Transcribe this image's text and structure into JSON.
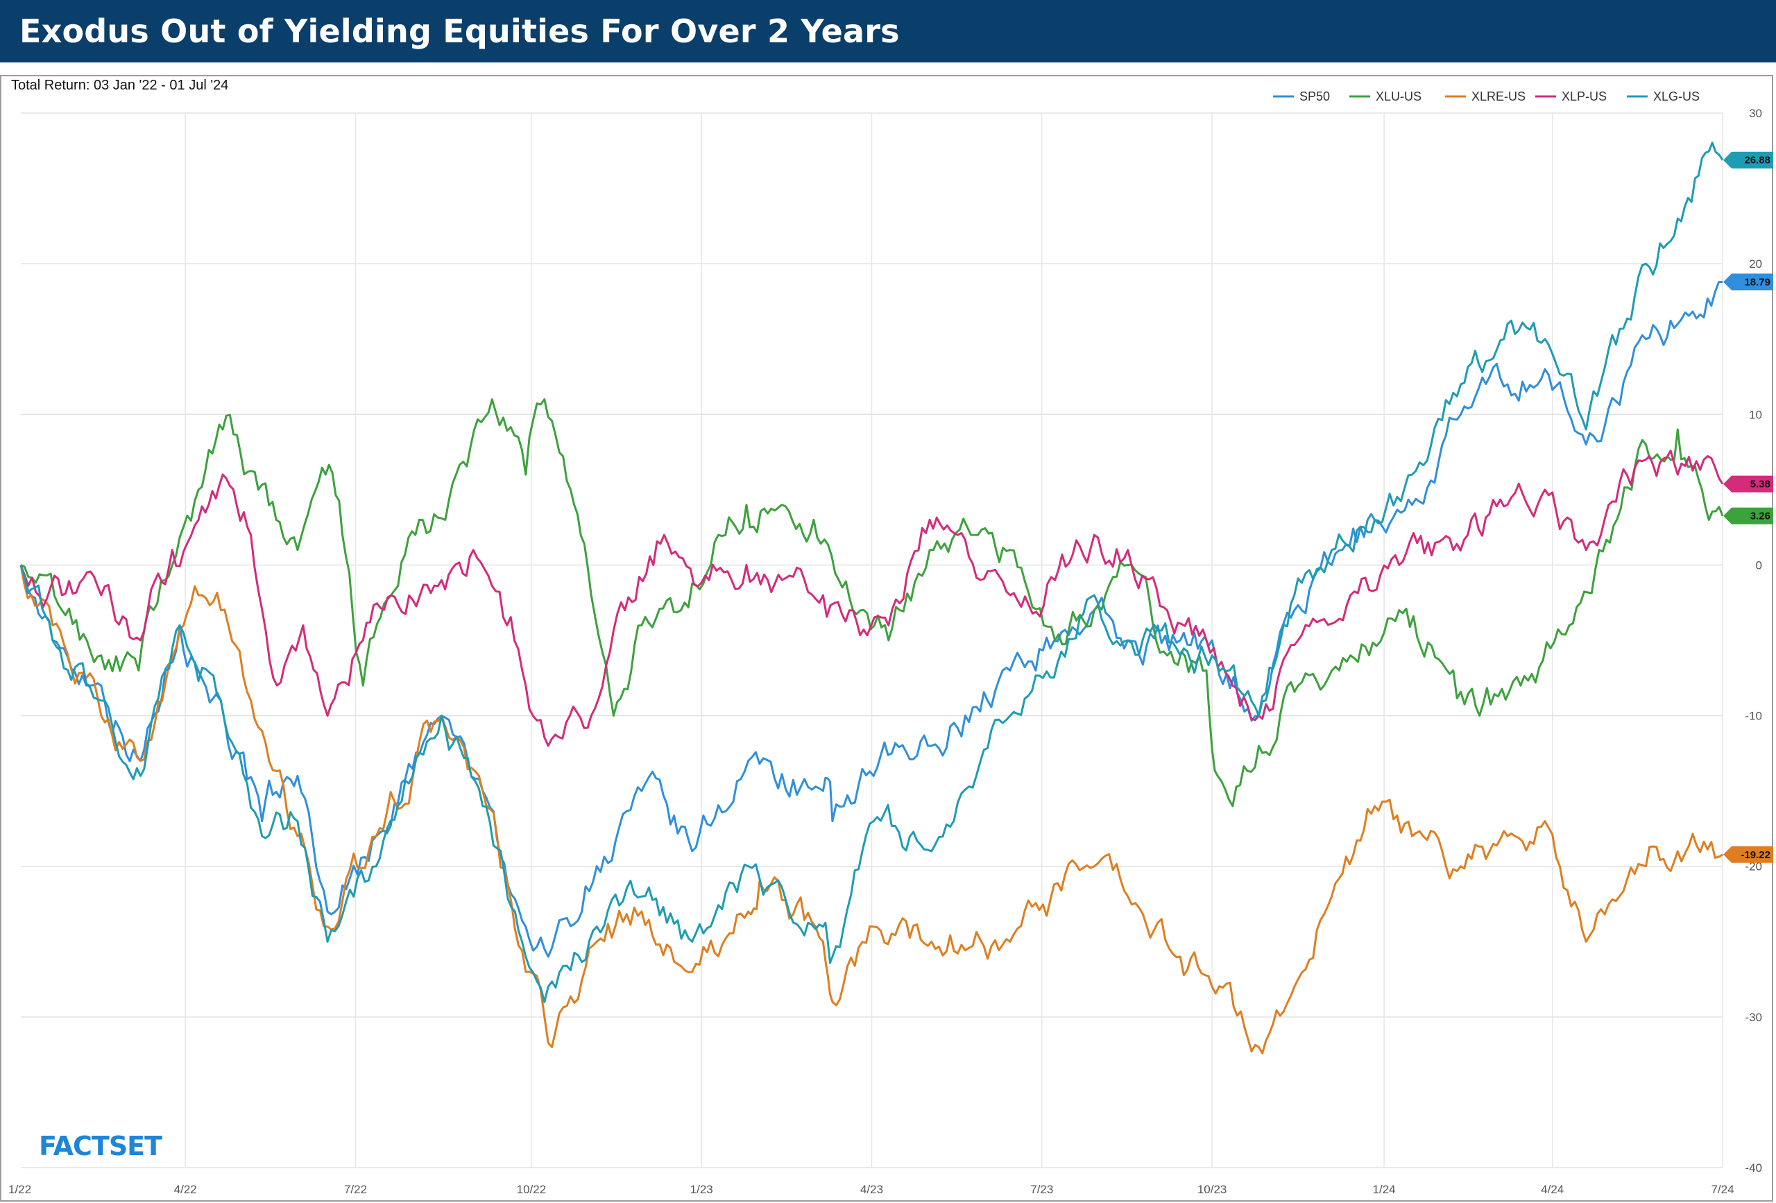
{
  "header": {
    "title": "Exodus Out of Yielding Equities For Over 2 Years",
    "subtitle": "Total Return: 03 Jan '22 - 01 Jul '24",
    "logo": "FACTSET"
  },
  "chart_data": {
    "type": "line",
    "title": "Exodus Out of Yielding Equities For Over 2 Years",
    "subtitle": "Total Return: 03 Jan '22 - 01 Jul '24",
    "xlabel": "",
    "ylabel": "",
    "x_ticks": [
      "1/22",
      "4/22",
      "7/22",
      "10/22",
      "1/23",
      "4/23",
      "7/23",
      "10/23",
      "1/24",
      "4/24",
      "7/24"
    ],
    "x_range": [
      "2022-01-03",
      "2024-07-01"
    ],
    "ylim": [
      -40,
      30
    ],
    "y_ticks": [
      30,
      20,
      10,
      0,
      -10,
      -20,
      -30,
      -40
    ],
    "grid": true,
    "legend_position": "top-right",
    "series": [
      {
        "name": "SP50",
        "color": "#2f8fdc",
        "end_label": "18.79",
        "points": [
          [
            "2022-01-03",
            0
          ],
          [
            "2022-01-20",
            -5
          ],
          [
            "2022-02-15",
            -8
          ],
          [
            "2022-03-08",
            -13
          ],
          [
            "2022-03-29",
            -4
          ],
          [
            "2022-04-20",
            -9
          ],
          [
            "2022-05-12",
            -17
          ],
          [
            "2022-05-31",
            -14
          ],
          [
            "2022-06-16",
            -23
          ],
          [
            "2022-07-12",
            -18
          ],
          [
            "2022-08-16",
            -10
          ],
          [
            "2022-09-07",
            -15
          ],
          [
            "2022-09-30",
            -24
          ],
          [
            "2022-10-12",
            -26
          ],
          [
            "2022-11-07",
            -20
          ],
          [
            "2022-12-01",
            -15
          ],
          [
            "2022-12-28",
            -19
          ],
          [
            "2023-01-27",
            -13
          ],
          [
            "2023-03-08",
            -15
          ],
          [
            "2023-03-13",
            -17
          ],
          [
            "2023-04-04",
            -14
          ],
          [
            "2023-05-05",
            -12
          ],
          [
            "2023-06-16",
            -7
          ],
          [
            "2023-07-31",
            -3
          ],
          [
            "2023-08-18",
            -5
          ],
          [
            "2023-09-15",
            -5
          ],
          [
            "2023-10-02",
            -5
          ],
          [
            "2023-10-27",
            -10
          ],
          [
            "2023-11-15",
            -3
          ],
          [
            "2023-12-05",
            0
          ],
          [
            "2023-12-28",
            3
          ],
          [
            "2024-01-17",
            4
          ],
          [
            "2024-02-12",
            10
          ],
          [
            "2024-03-08",
            12
          ],
          [
            "2024-03-28",
            13
          ],
          [
            "2024-04-19",
            8
          ],
          [
            "2024-05-21",
            15
          ],
          [
            "2024-06-07",
            16
          ],
          [
            "2024-07-01",
            18.79
          ]
        ]
      },
      {
        "name": "XLU-US",
        "color": "#3ca23c",
        "end_label": "3.26",
        "points": [
          [
            "2022-01-03",
            0
          ],
          [
            "2022-01-25",
            -3
          ],
          [
            "2022-02-15",
            -6
          ],
          [
            "2022-03-07",
            -7
          ],
          [
            "2022-03-25",
            0
          ],
          [
            "2022-04-08",
            5
          ],
          [
            "2022-04-21",
            9
          ],
          [
            "2022-05-10",
            5
          ],
          [
            "2022-05-31",
            1
          ],
          [
            "2022-06-15",
            6
          ],
          [
            "2022-06-24",
            2
          ],
          [
            "2022-07-05",
            -8
          ],
          [
            "2022-07-20",
            -2
          ],
          [
            "2022-08-02",
            2
          ],
          [
            "2022-08-18",
            3
          ],
          [
            "2022-09-12",
            11
          ],
          [
            "2022-09-30",
            6
          ],
          [
            "2022-10-10",
            11
          ],
          [
            "2022-10-24",
            5
          ],
          [
            "2022-11-04",
            -2
          ],
          [
            "2022-11-16",
            -10
          ],
          [
            "2022-12-01",
            -4
          ],
          [
            "2022-12-22",
            -3
          ],
          [
            "2023-01-11",
            2
          ],
          [
            "2023-01-26",
            4
          ],
          [
            "2023-02-14",
            4
          ],
          [
            "2023-03-03",
            3
          ],
          [
            "2023-03-24",
            -3
          ],
          [
            "2023-04-12",
            -5
          ],
          [
            "2023-05-04",
            1
          ],
          [
            "2023-05-26",
            2
          ],
          [
            "2023-06-16",
            1
          ],
          [
            "2023-07-10",
            -5
          ],
          [
            "2023-07-31",
            -3
          ],
          [
            "2023-08-18",
            0
          ],
          [
            "2023-09-08",
            -6
          ],
          [
            "2023-09-29",
            -7
          ],
          [
            "2023-10-05",
            -14
          ],
          [
            "2023-10-13",
            -16
          ],
          [
            "2023-10-27",
            -12
          ],
          [
            "2023-11-17",
            -8
          ],
          [
            "2023-12-15",
            -6
          ],
          [
            "2024-01-10",
            -3
          ],
          [
            "2024-02-08",
            -7
          ],
          [
            "2024-02-22",
            -10
          ],
          [
            "2024-03-15",
            -8
          ],
          [
            "2024-04-10",
            -4
          ],
          [
            "2024-04-26",
            1
          ],
          [
            "2024-05-21",
            8
          ],
          [
            "2024-05-29",
            7
          ],
          [
            "2024-06-07",
            9
          ],
          [
            "2024-06-20",
            5
          ],
          [
            "2024-07-01",
            3.26
          ]
        ]
      },
      {
        "name": "XLRE-US",
        "color": "#df7e1f",
        "end_label": "-19.22",
        "points": [
          [
            "2022-01-03",
            0
          ],
          [
            "2022-01-20",
            -4
          ],
          [
            "2022-02-15",
            -10
          ],
          [
            "2022-03-08",
            -13
          ],
          [
            "2022-03-31",
            -4
          ],
          [
            "2022-04-08",
            -2
          ],
          [
            "2022-04-20",
            -3
          ],
          [
            "2022-05-12",
            -11
          ],
          [
            "2022-05-31",
            -18
          ],
          [
            "2022-06-16",
            -24
          ],
          [
            "2022-07-12",
            -18
          ],
          [
            "2022-08-16",
            -10
          ],
          [
            "2022-09-07",
            -15
          ],
          [
            "2022-09-30",
            -27
          ],
          [
            "2022-10-14",
            -32
          ],
          [
            "2022-11-07",
            -25
          ],
          [
            "2022-12-01",
            -23
          ],
          [
            "2022-12-28",
            -27
          ],
          [
            "2023-01-27",
            -23
          ],
          [
            "2023-02-02",
            -21
          ],
          [
            "2023-03-08",
            -25
          ],
          [
            "2023-03-13",
            -29
          ],
          [
            "2023-04-04",
            -24
          ],
          [
            "2023-05-05",
            -25
          ],
          [
            "2023-06-16",
            -25
          ],
          [
            "2023-07-31",
            -20
          ],
          [
            "2023-08-18",
            -22
          ],
          [
            "2023-09-15",
            -26
          ],
          [
            "2023-10-02",
            -28
          ],
          [
            "2023-10-27",
            -32
          ],
          [
            "2023-11-15",
            -28
          ],
          [
            "2023-12-05",
            -22
          ],
          [
            "2023-12-28",
            -16
          ],
          [
            "2024-01-17",
            -18
          ],
          [
            "2024-02-12",
            -20
          ],
          [
            "2024-03-08",
            -18
          ],
          [
            "2024-03-28",
            -17
          ],
          [
            "2024-04-19",
            -25
          ],
          [
            "2024-05-21",
            -20
          ],
          [
            "2024-06-07",
            -19
          ],
          [
            "2024-07-01",
            -19.22
          ]
        ]
      },
      {
        "name": "XLP-US",
        "color": "#d42b7a",
        "end_label": "5.38",
        "points": [
          [
            "2022-01-03",
            0
          ],
          [
            "2022-01-25",
            -2
          ],
          [
            "2022-02-15",
            -2
          ],
          [
            "2022-03-08",
            -5
          ],
          [
            "2022-03-25",
            1
          ],
          [
            "2022-04-08",
            3
          ],
          [
            "2022-04-21",
            6
          ],
          [
            "2022-05-06",
            2
          ],
          [
            "2022-05-20",
            -8
          ],
          [
            "2022-06-03",
            -4
          ],
          [
            "2022-06-16",
            -10
          ],
          [
            "2022-07-05",
            -5
          ],
          [
            "2022-07-20",
            -2
          ],
          [
            "2022-08-16",
            -1
          ],
          [
            "2022-09-02",
            1
          ],
          [
            "2022-09-20",
            -4
          ],
          [
            "2022-09-30",
            -8
          ],
          [
            "2022-10-12",
            -12
          ],
          [
            "2022-11-04",
            -10
          ],
          [
            "2022-11-22",
            -3
          ],
          [
            "2022-12-13",
            2
          ],
          [
            "2023-01-06",
            -1
          ],
          [
            "2023-01-26",
            0
          ],
          [
            "2023-02-14",
            -1
          ],
          [
            "2023-03-08",
            -2
          ],
          [
            "2023-03-24",
            -3
          ],
          [
            "2023-04-12",
            -4
          ],
          [
            "2023-05-04",
            3
          ],
          [
            "2023-05-19",
            2
          ],
          [
            "2023-06-16",
            -2
          ],
          [
            "2023-07-10",
            -1
          ],
          [
            "2023-07-31",
            2
          ],
          [
            "2023-08-18",
            1
          ],
          [
            "2023-09-08",
            -3
          ],
          [
            "2023-09-29",
            -5
          ],
          [
            "2023-10-13",
            -8
          ],
          [
            "2023-10-27",
            -10
          ],
          [
            "2023-11-17",
            -5
          ],
          [
            "2023-12-15",
            -2
          ],
          [
            "2024-01-10",
            0
          ],
          [
            "2024-02-08",
            1
          ],
          [
            "2024-03-08",
            4
          ],
          [
            "2024-03-28",
            5
          ],
          [
            "2024-04-19",
            1
          ],
          [
            "2024-05-21",
            7
          ],
          [
            "2024-06-07",
            6
          ],
          [
            "2024-07-01",
            5.38
          ]
        ]
      },
      {
        "name": "XLG-US",
        "color": "#1e9cb3",
        "end_label": "26.88",
        "points": [
          [
            "2022-01-03",
            0
          ],
          [
            "2022-01-20",
            -5
          ],
          [
            "2022-02-15",
            -9
          ],
          [
            "2022-03-08",
            -14
          ],
          [
            "2022-03-29",
            -4
          ],
          [
            "2022-04-20",
            -9
          ],
          [
            "2022-05-12",
            -18
          ],
          [
            "2022-05-31",
            -17
          ],
          [
            "2022-06-16",
            -25
          ],
          [
            "2022-07-12",
            -20
          ],
          [
            "2022-08-16",
            -10
          ],
          [
            "2022-09-07",
            -16
          ],
          [
            "2022-09-30",
            -26
          ],
          [
            "2022-10-12",
            -28
          ],
          [
            "2022-11-07",
            -24
          ],
          [
            "2022-12-01",
            -22
          ],
          [
            "2022-12-28",
            -25
          ],
          [
            "2023-01-27",
            -20
          ],
          [
            "2023-03-08",
            -24
          ],
          [
            "2023-03-13",
            -26
          ],
          [
            "2023-04-04",
            -17
          ],
          [
            "2023-05-05",
            -19
          ],
          [
            "2023-06-16",
            -10
          ],
          [
            "2023-07-31",
            -2
          ],
          [
            "2023-08-18",
            -5
          ],
          [
            "2023-09-15",
            -6
          ],
          [
            "2023-10-02",
            -6
          ],
          [
            "2023-10-27",
            -10
          ],
          [
            "2023-11-15",
            -2
          ],
          [
            "2023-12-05",
            1
          ],
          [
            "2023-12-28",
            3
          ],
          [
            "2024-01-17",
            6
          ],
          [
            "2024-02-12",
            12
          ],
          [
            "2024-03-08",
            16
          ],
          [
            "2024-03-28",
            15
          ],
          [
            "2024-04-19",
            9
          ],
          [
            "2024-05-21",
            20
          ],
          [
            "2024-06-07",
            23
          ],
          [
            "2024-06-20",
            27
          ],
          [
            "2024-07-01",
            26.88
          ]
        ]
      }
    ]
  }
}
